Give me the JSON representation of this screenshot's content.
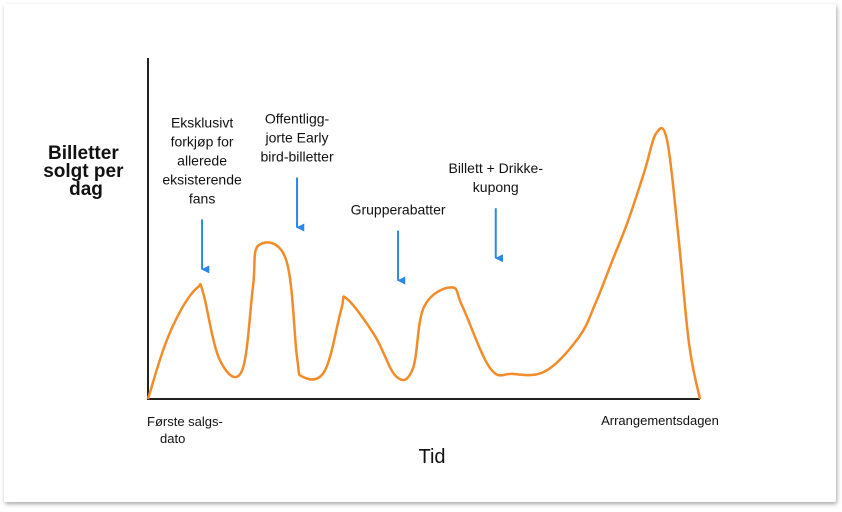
{
  "chart_data": {
    "type": "line",
    "title": "",
    "ylabel": [
      "Billetter",
      "solgt per",
      "dag"
    ],
    "xlabel": "Tid",
    "x_tick_labels": {
      "start": [
        "Første salgs-",
        "dato"
      ],
      "end": "Arrangementsdagen"
    },
    "grid": false,
    "legend": "none",
    "series": [
      {
        "color": "#f28c28",
        "x": [
          0,
          3,
          6,
          9,
          10,
          13,
          17,
          19,
          20,
          25,
          27,
          28,
          32,
          35,
          36,
          41,
          45,
          48,
          50,
          55,
          57,
          62,
          66,
          72,
          78,
          81,
          84,
          87,
          90,
          92,
          94,
          96,
          98,
          100
        ],
        "y": [
          0,
          19,
          32,
          40,
          38,
          14,
          10,
          40,
          55,
          50,
          15,
          8,
          10,
          32,
          36,
          23,
          8,
          11,
          33,
          40,
          33,
          11,
          9,
          10,
          22,
          34,
          49,
          64,
          82,
          95,
          93,
          60,
          20,
          0
        ]
      }
    ],
    "ylim": [
      0,
      100
    ],
    "xlim": [
      0,
      100
    ],
    "annotations": [
      {
        "x": 9.8,
        "y": 40,
        "lines": [
          "Eksklusivt",
          "forkjøp for",
          "allerede",
          "eksisterende",
          "fans"
        ]
      },
      {
        "x": 27,
        "y": 55,
        "lines": [
          "Offentligg-",
          "jorte Early",
          "bird-billetter"
        ]
      },
      {
        "x": 45.3,
        "y": 36,
        "lines": [
          "Grupperabatter"
        ]
      },
      {
        "x": 63,
        "y": 44,
        "lines": [
          "Billett + Drikke-",
          "kupong"
        ]
      }
    ],
    "colors": {
      "line": "#f28c28",
      "arrow": "#2a86e8",
      "axis": "#222222"
    }
  }
}
